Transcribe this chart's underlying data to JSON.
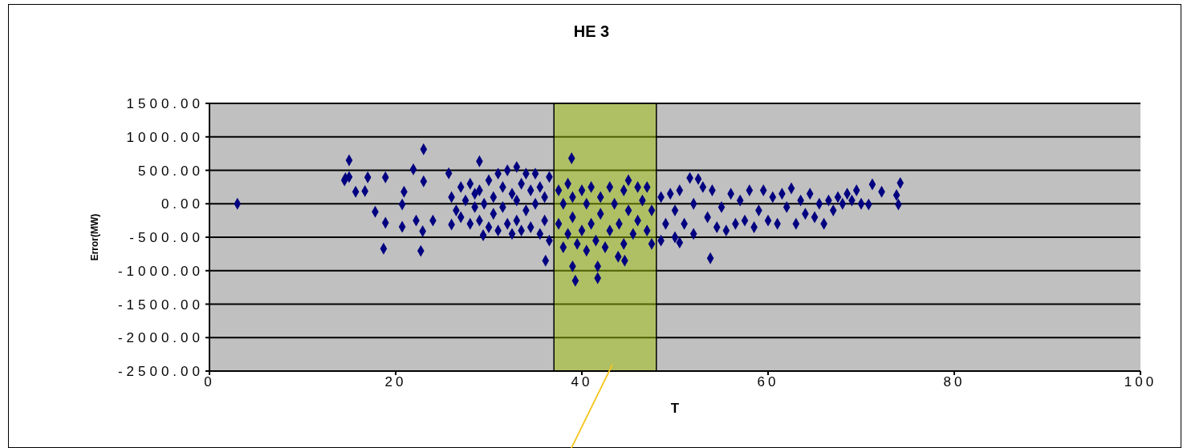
{
  "chart_data": {
    "type": "scatter",
    "title": "HE 3",
    "xlabel": "T",
    "ylabel": "Error(MW)",
    "xlim": [
      0,
      100
    ],
    "xticks": [
      0,
      20,
      40,
      60,
      80,
      100
    ],
    "ylim": [
      -2500,
      1500
    ],
    "yticks": [
      {
        "value": 1500,
        "label": "1500.00"
      },
      {
        "value": 1000,
        "label": "1000.00"
      },
      {
        "value": 500,
        "label": "500.00"
      },
      {
        "value": 0,
        "label": "0.00"
      },
      {
        "value": -500,
        "label": "-500.00"
      },
      {
        "value": -1000,
        "label": "-1000.00"
      },
      {
        "value": -1500,
        "label": "-1500.00"
      },
      {
        "value": -2000,
        "label": "-2000.00"
      },
      {
        "value": -2500,
        "label": "-2500.00"
      }
    ],
    "grid": "y",
    "marker": "diamond",
    "bands": [
      {
        "axis": "x",
        "from": 37,
        "to": 48,
        "color": "#9dc008"
      }
    ],
    "series": [
      {
        "color": "#000080",
        "x": [
          3,
          14.5,
          14.6,
          15,
          15,
          15.7,
          16.7,
          17,
          17.8,
          18.7,
          18.9,
          18.9,
          20.7,
          20.7,
          20.9,
          21.9,
          22.2,
          22.7,
          22.9,
          23,
          23,
          24,
          25.7,
          26,
          26,
          26.5,
          27,
          27,
          27.5,
          28,
          28,
          28.5,
          28.5,
          29,
          29,
          29,
          29.4,
          29.5,
          30,
          30,
          30.5,
          30.5,
          31,
          31,
          31.5,
          31.5,
          32,
          32,
          32.5,
          32.5,
          33,
          33,
          33,
          33.5,
          33.5,
          34,
          34,
          34.5,
          34.5,
          35,
          35,
          35.5,
          35.5,
          36,
          36,
          36.1,
          36.5,
          36.5,
          37.5,
          37.5,
          38,
          38,
          38.5,
          38.5,
          38.9,
          39,
          39,
          39,
          39.3,
          39.5,
          40,
          40,
          40.5,
          40.5,
          41,
          41,
          41.5,
          41.7,
          41.7,
          42,
          42,
          42.5,
          43,
          43,
          43.5,
          43.9,
          44,
          44.5,
          44.5,
          44.6,
          45,
          45,
          45.5,
          46,
          46,
          46.5,
          47,
          47,
          47.5,
          47.5,
          48.5,
          48.5,
          49,
          49.5,
          50,
          50,
          50.5,
          50.5,
          51,
          51.6,
          52,
          52,
          52.5,
          53,
          53.5,
          53.8,
          54,
          54.5,
          55,
          55.5,
          56,
          56.5,
          57,
          57.5,
          58,
          58.5,
          59,
          59.5,
          60,
          60.5,
          61,
          61.5,
          62,
          62.5,
          63,
          63.5,
          64,
          64.5,
          65,
          65.5,
          66,
          66.5,
          67,
          67.5,
          68,
          68.5,
          69,
          69.5,
          70,
          70.8,
          71.2,
          72.2,
          73.8,
          74,
          74.2
        ],
        "values": [
          0,
          350,
          380,
          650,
          400,
          180,
          190,
          395,
          -120,
          -670,
          -285,
          395,
          -10,
          -345,
          180,
          515,
          -250,
          -705,
          -410,
          815,
          335,
          -250,
          455,
          -310,
          100,
          -100,
          250,
          -200,
          50,
          300,
          -300,
          150,
          -50,
          635,
          200,
          -250,
          -470,
          0,
          350,
          -350,
          100,
          -150,
          450,
          -400,
          250,
          -50,
          500,
          -300,
          150,
          -450,
          550,
          50,
          -250,
          300,
          -400,
          450,
          -100,
          200,
          -350,
          450,
          0,
          250,
          -450,
          100,
          -250,
          -850,
          400,
          -550,
          200,
          -300,
          0,
          -650,
          300,
          -450,
          680,
          100,
          -200,
          -935,
          -1150,
          -600,
          200,
          -400,
          0,
          -700,
          250,
          -300,
          -550,
          -935,
          -1110,
          100,
          -150,
          -650,
          250,
          -400,
          0,
          -790,
          -300,
          200,
          -600,
          -850,
          350,
          -100,
          -450,
          250,
          -250,
          50,
          250,
          -400,
          -100,
          -600,
          -550,
          100,
          -300,
          150,
          -500,
          -100,
          200,
          -580,
          -300,
          385,
          -450,
          0,
          370,
          250,
          -200,
          -815,
          200,
          -350,
          -50,
          -400,
          150,
          -300,
          50,
          -250,
          200,
          -350,
          -100,
          200,
          -250,
          100,
          -300,
          150,
          -50,
          230,
          -300,
          50,
          -150,
          150,
          -200,
          0,
          -300,
          50,
          -100,
          100,
          0,
          150,
          50,
          200,
          0,
          -10,
          290,
          180,
          130,
          -10,
          310
        ]
      }
    ]
  }
}
